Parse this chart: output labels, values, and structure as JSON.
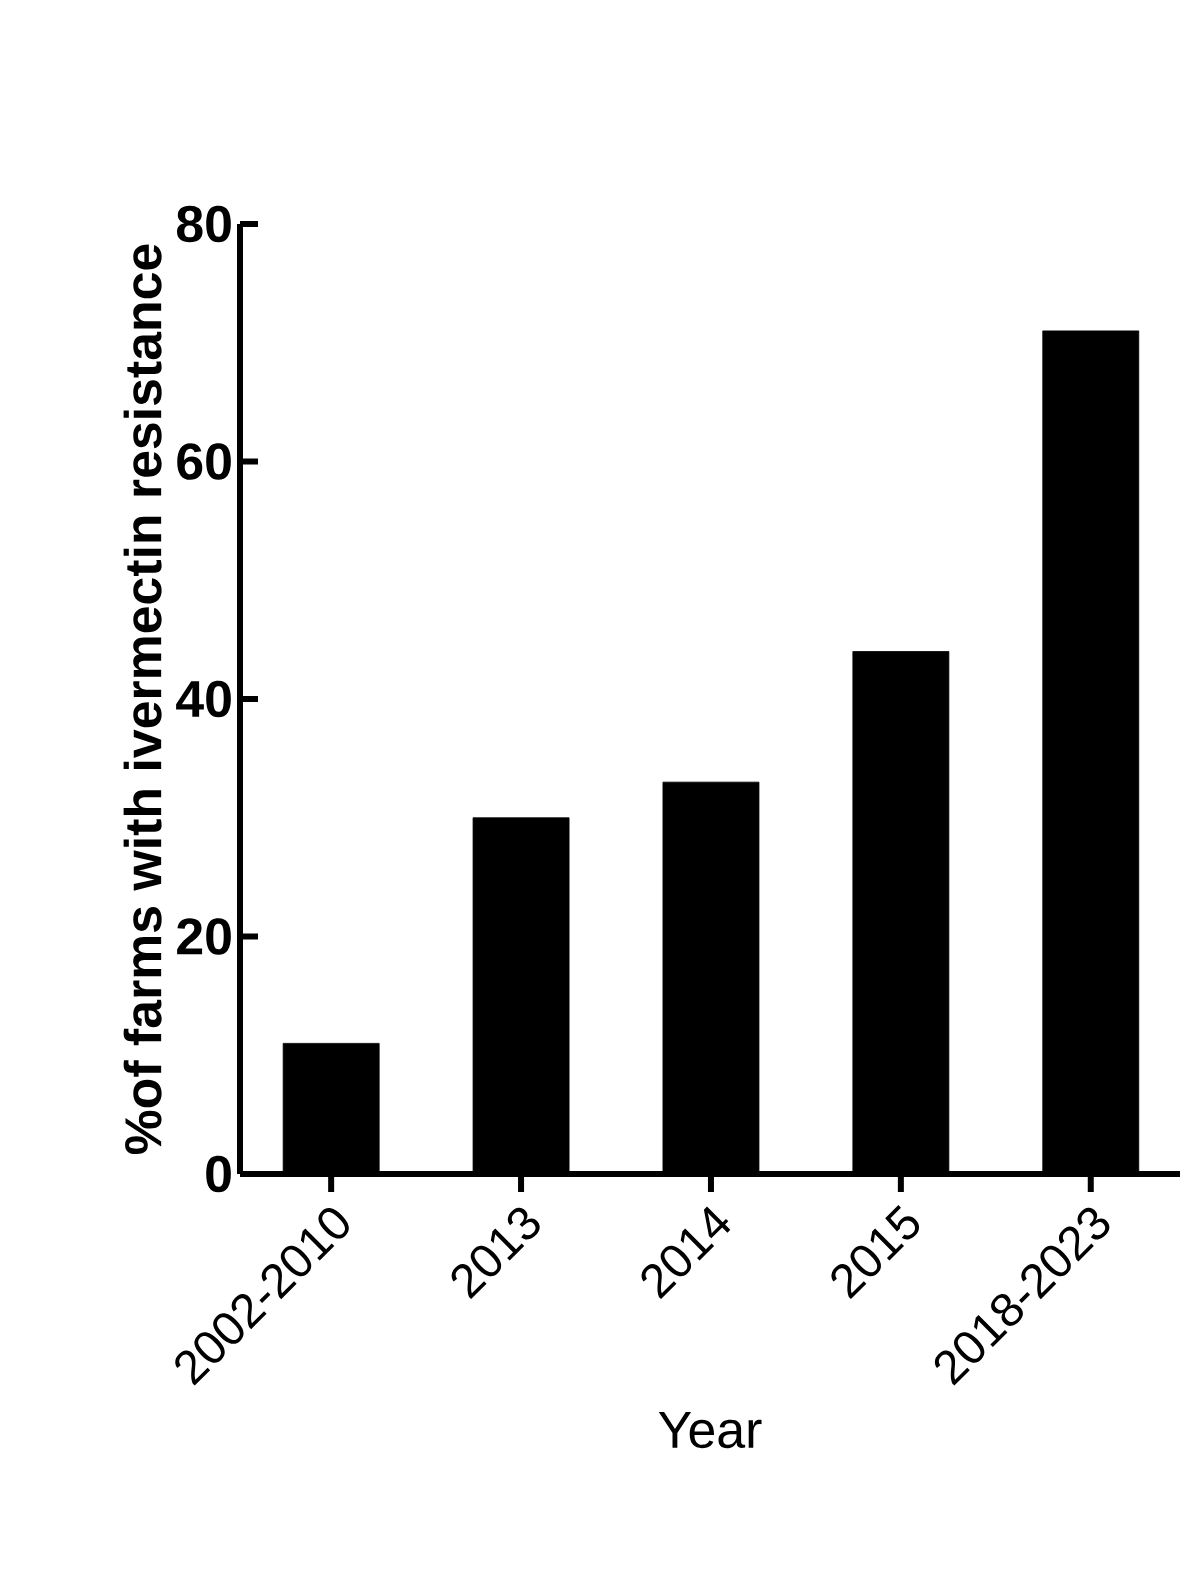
{
  "chart_data": {
    "type": "bar",
    "xlabel": "Year",
    "ylabel": "%of farms with ivermectin resistance",
    "categories": [
      "2002-2010",
      "2013",
      "2014",
      "2015",
      "2018-2023"
    ],
    "values": [
      11,
      30,
      33,
      44,
      71
    ],
    "color": "#000000",
    "ylim": [
      0,
      80
    ],
    "yticks": [
      0,
      20,
      40,
      60,
      80
    ]
  }
}
